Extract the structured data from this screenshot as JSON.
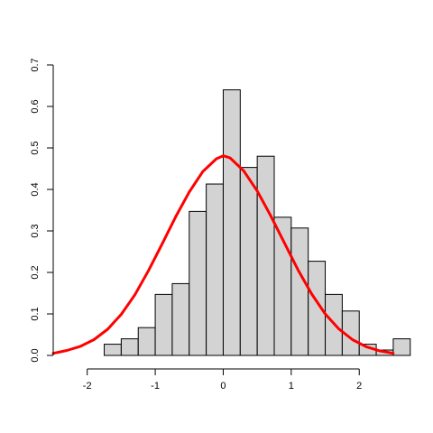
{
  "chart_data": {
    "type": "bar",
    "subtype": "histogram-with-density-curve",
    "title": "",
    "xlabel": "",
    "ylabel": "",
    "xlim": [
      -2.5,
      2.7
    ],
    "ylim": [
      0,
      0.7
    ],
    "x_ticks": [
      -2,
      -1,
      0,
      1,
      2
    ],
    "x_tick_labels": [
      "-2",
      "-1",
      "0",
      "1",
      "2"
    ],
    "y_ticks": [
      0.0,
      0.1,
      0.2,
      0.3,
      0.4,
      0.5,
      0.6,
      0.7
    ],
    "y_tick_labels": [
      "0.0",
      "0.1",
      "0.2",
      "0.3",
      "0.4",
      "0.5",
      "0.6",
      "0.7"
    ],
    "grid": false,
    "legend": "none",
    "bar_color": "#d3d3d3",
    "bar_edge_color": "#000000",
    "bins": [
      {
        "x0": -1.75,
        "x1": -1.5,
        "density": 0.027
      },
      {
        "x0": -1.5,
        "x1": -1.25,
        "density": 0.04
      },
      {
        "x0": -1.25,
        "x1": -1.0,
        "density": 0.067
      },
      {
        "x0": -1.0,
        "x1": -0.75,
        "density": 0.147
      },
      {
        "x0": -0.75,
        "x1": -0.5,
        "density": 0.173
      },
      {
        "x0": -0.5,
        "x1": -0.25,
        "density": 0.347
      },
      {
        "x0": -0.25,
        "x1": 0.0,
        "density": 0.413
      },
      {
        "x0": 0.0,
        "x1": 0.25,
        "density": 0.64
      },
      {
        "x0": 0.25,
        "x1": 0.5,
        "density": 0.453
      },
      {
        "x0": 0.5,
        "x1": 0.75,
        "density": 0.48
      },
      {
        "x0": 0.75,
        "x1": 1.0,
        "density": 0.333
      },
      {
        "x0": 1.0,
        "x1": 1.25,
        "density": 0.307
      },
      {
        "x0": 1.25,
        "x1": 1.5,
        "density": 0.227
      },
      {
        "x0": 1.5,
        "x1": 1.75,
        "density": 0.147
      },
      {
        "x0": 1.75,
        "x1": 2.0,
        "density": 0.107
      },
      {
        "x0": 2.0,
        "x1": 2.25,
        "density": 0.027
      },
      {
        "x0": 2.25,
        "x1": 2.5,
        "density": 0.013
      },
      {
        "x0": 2.5,
        "x1": 2.75,
        "density": 0.04
      }
    ],
    "density_curve": {
      "color": "#ff0000",
      "x": [
        -2.5,
        -2.3,
        -2.1,
        -1.9,
        -1.7,
        -1.5,
        -1.3,
        -1.1,
        -0.9,
        -0.7,
        -0.5,
        -0.3,
        -0.1,
        0.0,
        0.1,
        0.3,
        0.5,
        0.7,
        0.9,
        1.1,
        1.3,
        1.5,
        1.7,
        1.9,
        2.1,
        2.3,
        2.5
      ],
      "y": [
        0.005,
        0.012,
        0.022,
        0.038,
        0.063,
        0.099,
        0.146,
        0.204,
        0.268,
        0.334,
        0.394,
        0.443,
        0.474,
        0.481,
        0.476,
        0.445,
        0.396,
        0.336,
        0.271,
        0.206,
        0.148,
        0.1,
        0.064,
        0.038,
        0.021,
        0.011,
        0.005
      ]
    }
  }
}
